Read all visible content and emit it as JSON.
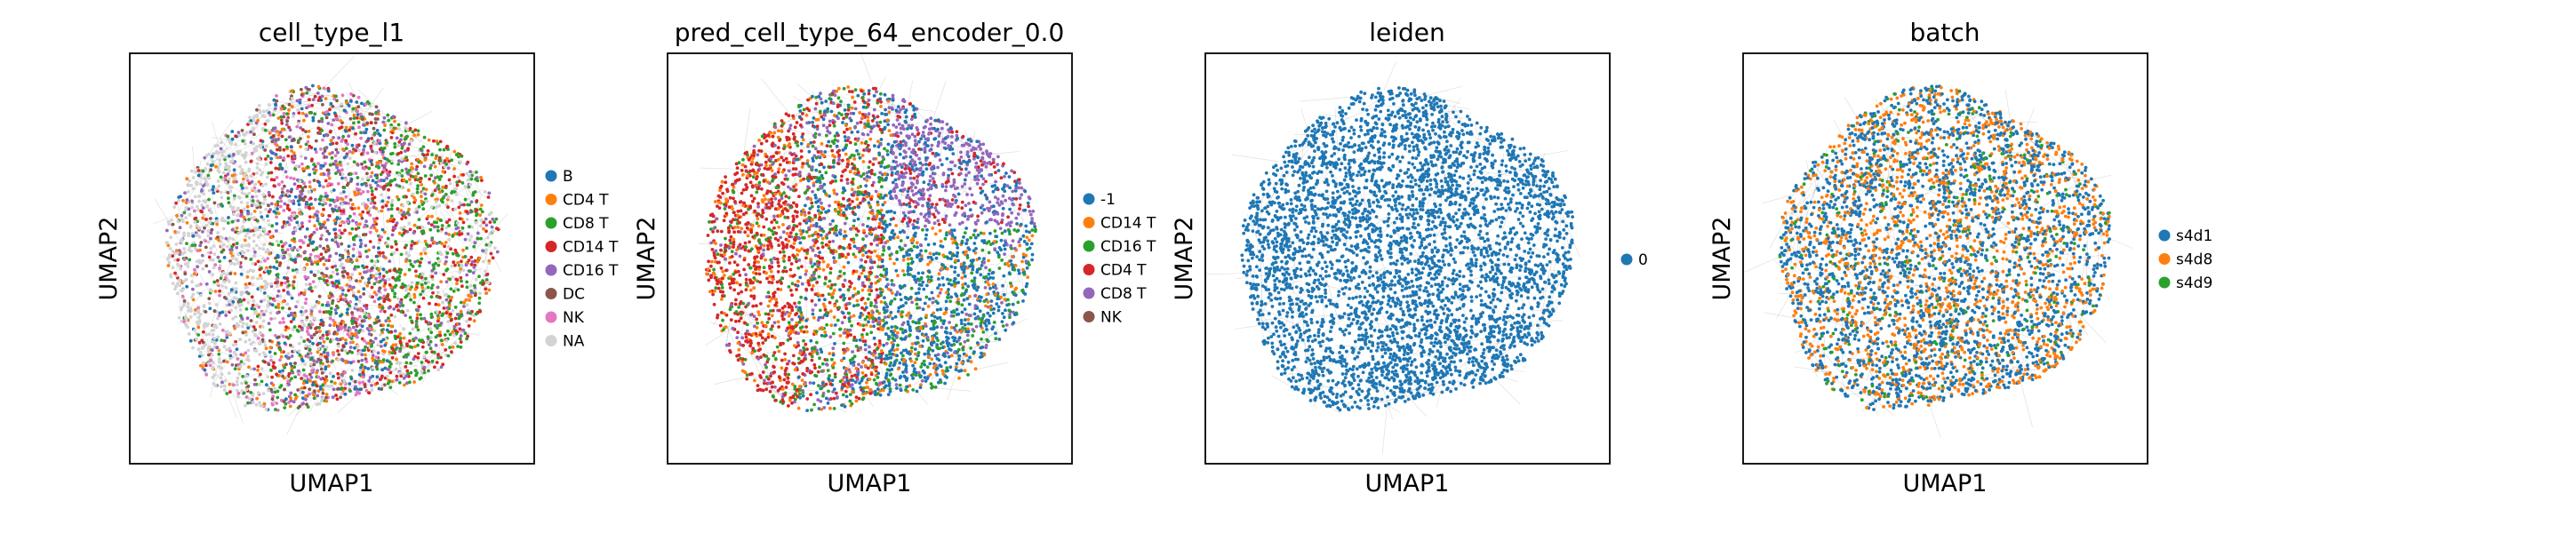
{
  "chart_data": [
    {
      "type": "scatter",
      "title": "cell_type_l1",
      "xlabel": "UMAP1",
      "ylabel": "UMAP2",
      "legend_position": "right",
      "grid": false,
      "legend": [
        {
          "name": "B",
          "color": "#1f77b4"
        },
        {
          "name": "CD4 T",
          "color": "#ff7f0e"
        },
        {
          "name": "CD8 T",
          "color": "#2ca02c"
        },
        {
          "name": "CD14 T",
          "color": "#d62728"
        },
        {
          "name": "CD16 T",
          "color": "#9467bd"
        },
        {
          "name": "DC",
          "color": "#8c564b"
        },
        {
          "name": "NK",
          "color": "#e377c2"
        },
        {
          "name": "NA",
          "color": "#d3d3d3"
        }
      ]
    },
    {
      "type": "scatter",
      "title": "pred_cell_type_64_encoder_0.0",
      "xlabel": "UMAP1",
      "ylabel": "UMAP2",
      "legend_position": "right",
      "grid": false,
      "legend": [
        {
          "name": "-1",
          "color": "#1f77b4"
        },
        {
          "name": "CD14 T",
          "color": "#ff7f0e"
        },
        {
          "name": "CD16 T",
          "color": "#2ca02c"
        },
        {
          "name": "CD4 T",
          "color": "#d62728"
        },
        {
          "name": "CD8 T",
          "color": "#9467bd"
        },
        {
          "name": "NK",
          "color": "#8c564b"
        }
      ]
    },
    {
      "type": "scatter",
      "title": "leiden",
      "xlabel": "UMAP1",
      "ylabel": "UMAP2",
      "legend_position": "right",
      "grid": false,
      "legend": [
        {
          "name": "0",
          "color": "#1f77b4"
        }
      ]
    },
    {
      "type": "scatter",
      "title": "batch",
      "xlabel": "UMAP1",
      "ylabel": "UMAP2",
      "legend_position": "right",
      "grid": false,
      "legend": [
        {
          "name": "s4d1",
          "color": "#1f77b4"
        },
        {
          "name": "s4d8",
          "color": "#ff7f0e"
        },
        {
          "name": "s4d9",
          "color": "#2ca02c"
        }
      ]
    }
  ]
}
